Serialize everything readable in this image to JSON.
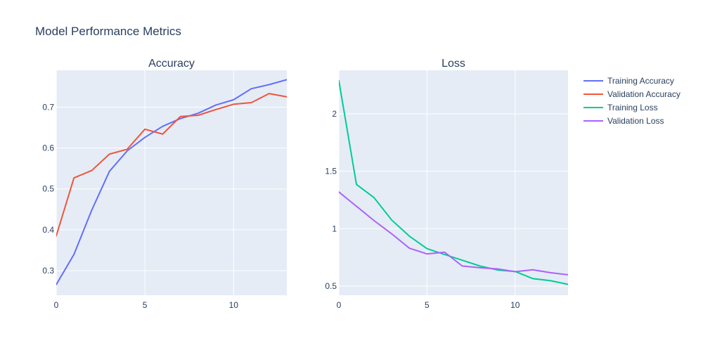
{
  "title": "Model Performance Metrics",
  "chart_data": [
    {
      "type": "line",
      "title": "Accuracy",
      "x": [
        0,
        1,
        2,
        3,
        4,
        5,
        6,
        7,
        8,
        9,
        10,
        11,
        12,
        13
      ],
      "xlim": [
        0,
        13
      ],
      "ylim": [
        0.24,
        0.79
      ],
      "xticks": [
        0,
        5,
        10
      ],
      "yticks": [
        0.3,
        0.4,
        0.5,
        0.6,
        0.7
      ],
      "xtick_labels": [
        "0",
        "5",
        "10"
      ],
      "ytick_labels": [
        "0.3",
        "0.4",
        "0.5",
        "0.6",
        "0.7"
      ],
      "series": [
        {
          "name": "Training Accuracy",
          "color": "#636efa",
          "values": [
            0.266,
            0.34,
            0.448,
            0.543,
            0.593,
            0.626,
            0.653,
            0.672,
            0.685,
            0.705,
            0.718,
            0.745,
            0.755,
            0.767
          ]
        },
        {
          "name": "Validation Accuracy",
          "color": "#ef553b",
          "values": [
            0.385,
            0.527,
            0.545,
            0.585,
            0.597,
            0.646,
            0.634,
            0.677,
            0.68,
            0.694,
            0.707,
            0.711,
            0.733,
            0.725
          ]
        }
      ]
    },
    {
      "type": "line",
      "title": "Loss",
      "x": [
        0,
        1,
        2,
        3,
        4,
        5,
        6,
        7,
        8,
        9,
        10,
        11,
        12,
        13
      ],
      "xlim": [
        0,
        13
      ],
      "ylim": [
        0.42,
        2.38
      ],
      "xticks": [
        0,
        5,
        10
      ],
      "yticks": [
        0.5,
        1,
        1.5,
        2
      ],
      "xtick_labels": [
        "0",
        "5",
        "10"
      ],
      "ytick_labels": [
        "0.5",
        "1",
        "1.5",
        "2"
      ],
      "series": [
        {
          "name": "Training Loss",
          "color": "#00cc96",
          "values": [
            2.29,
            1.385,
            1.27,
            1.075,
            0.935,
            0.826,
            0.775,
            0.725,
            0.675,
            0.64,
            0.627,
            0.565,
            0.547,
            0.515
          ]
        },
        {
          "name": "Validation Loss",
          "color": "#ab63fa",
          "values": [
            1.32,
            1.195,
            1.07,
            0.955,
            0.83,
            0.78,
            0.795,
            0.675,
            0.66,
            0.65,
            0.625,
            0.642,
            0.617,
            0.598
          ]
        }
      ]
    }
  ],
  "legend": {
    "position": "right",
    "items": [
      {
        "label": "Training Accuracy",
        "color": "#636efa"
      },
      {
        "label": "Validation Accuracy",
        "color": "#ef553b"
      },
      {
        "label": "Training Loss",
        "color": "#00cc96"
      },
      {
        "label": "Validation Loss",
        "color": "#ab63fa"
      }
    ]
  },
  "style": {
    "plot_bg": "#e5ecf6",
    "grid_color": "#ffffff",
    "text_color": "#2a3f5f"
  }
}
